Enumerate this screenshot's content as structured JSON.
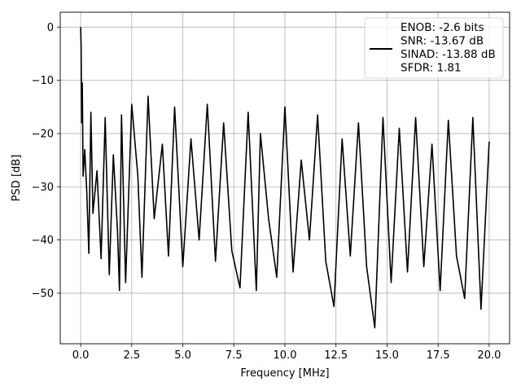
{
  "chart_data": {
    "type": "line",
    "xlabel": "Frequency [MHz]",
    "ylabel": "PSD [dB]",
    "xlim": [
      -1.0,
      21.0
    ],
    "ylim": [
      -59.5,
      2.8
    ],
    "xticks": [
      0.0,
      2.5,
      5.0,
      7.5,
      10.0,
      12.5,
      15.0,
      17.5,
      20.0
    ],
    "xtick_labels": [
      "0.0",
      "2.5",
      "5.0",
      "7.5",
      "10.0",
      "12.5",
      "15.0",
      "17.5",
      "20.0"
    ],
    "yticks": [
      0,
      -10,
      -20,
      -30,
      -40,
      -50
    ],
    "ytick_labels": [
      "0",
      "−10",
      "−20",
      "−30",
      "−40",
      "−50"
    ],
    "grid": true,
    "legend_position": "top-right",
    "legend_lines": [
      "ENOB: -2.6 bits",
      "SNR: -13.67 dB",
      "SINAD: -13.88 dB",
      "SFDR: 1.81"
    ],
    "series": [
      {
        "color": "#000000",
        "description_note": "dense noise spectrum",
        "x": [
          0.0,
          0.02,
          0.05,
          0.08,
          0.12,
          0.2,
          0.3,
          0.4,
          0.5,
          0.6,
          0.8,
          1.0,
          1.2,
          1.4,
          1.6,
          1.8,
          1.9,
          2.0,
          2.2,
          2.5,
          2.8,
          3.0,
          3.3,
          3.6,
          4.0,
          4.3,
          4.6,
          5.0,
          5.4,
          5.8,
          6.2,
          6.6,
          7.0,
          7.4,
          7.8,
          8.2,
          8.6,
          8.8,
          9.2,
          9.6,
          10.0,
          10.4,
          10.8,
          11.2,
          11.6,
          12.0,
          12.4,
          12.8,
          13.2,
          13.6,
          14.0,
          14.4,
          14.8,
          15.2,
          15.6,
          16.0,
          16.4,
          16.8,
          17.2,
          17.6,
          18.0,
          18.4,
          18.8,
          19.2,
          19.6,
          20.0
        ],
        "y": [
          0.0,
          -3.0,
          -18.0,
          -10.5,
          -28.0,
          -23.0,
          -31.0,
          -42.5,
          -16.0,
          -35.0,
          -27.0,
          -43.5,
          -17.0,
          -46.5,
          -24.0,
          -38.0,
          -49.5,
          -16.5,
          -48.0,
          -14.5,
          -28.0,
          -47.0,
          -13.0,
          -36.0,
          -22.0,
          -43.0,
          -15.0,
          -45.0,
          -21.0,
          -40.0,
          -14.5,
          -44.0,
          -18.0,
          -42.0,
          -49.0,
          -16.0,
          -49.5,
          -20.0,
          -36.0,
          -47.0,
          -15.0,
          -46.0,
          -25.0,
          -40.0,
          -16.5,
          -44.0,
          -52.5,
          -21.0,
          -43.0,
          -18.0,
          -45.0,
          -56.5,
          -17.0,
          -48.0,
          -19.0,
          -46.0,
          -17.0,
          -45.0,
          -22.0,
          -49.5,
          -17.5,
          -43.0,
          -51.0,
          -17.0,
          -53.0,
          -21.5
        ]
      }
    ]
  }
}
